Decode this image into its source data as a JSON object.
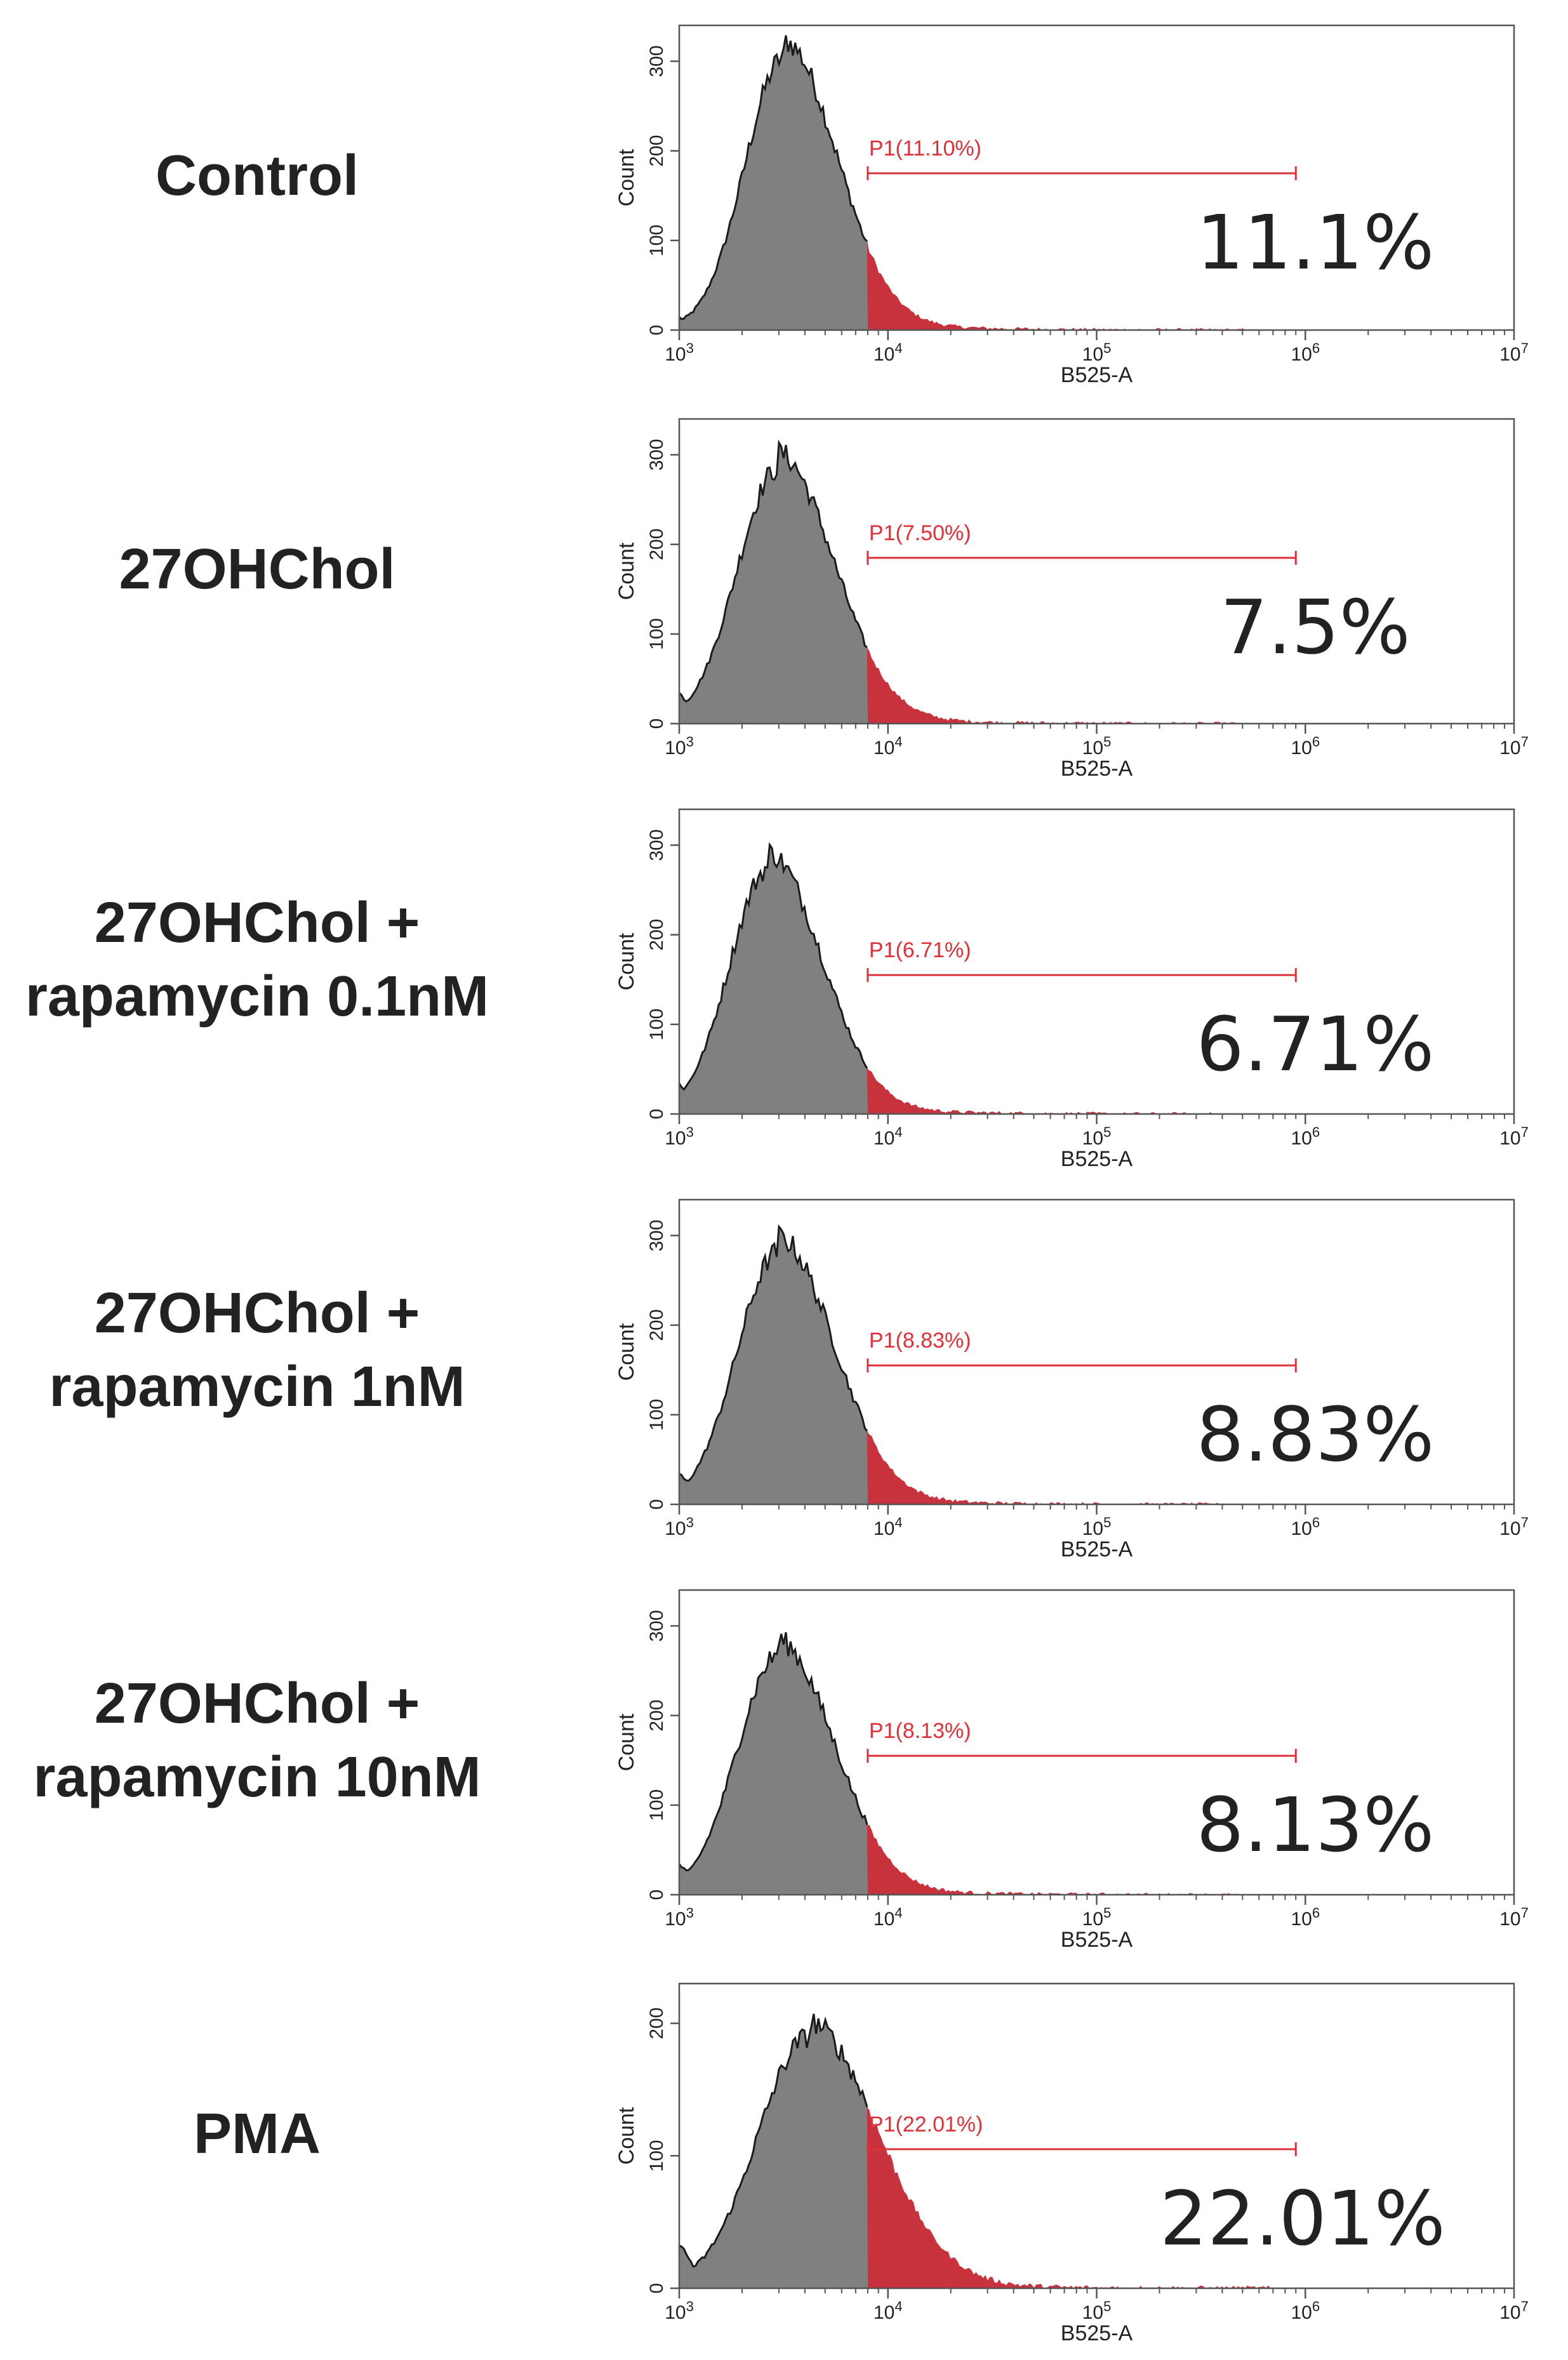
{
  "colors": {
    "histogram_fill": "#808080",
    "gated_fill": "#C8323C",
    "gate_color": "#E0303A",
    "outline": "#1a1a1a",
    "text": "#222222"
  },
  "chart_data": [
    {
      "type": "area",
      "condition": "Control",
      "condition_lines": [
        "Control"
      ],
      "xlabel": "B525-A",
      "ylabel": "Count",
      "x_scale": "log",
      "xlim": [
        1000,
        10000000
      ],
      "ylim": [
        0,
        340
      ],
      "x_ticks": [
        1000,
        10000,
        100000,
        1000000,
        10000000
      ],
      "y_ticks": [
        0,
        100,
        200,
        300
      ],
      "peak_x": 3200,
      "peak_y": 305,
      "width": 0.2,
      "base_y": 10,
      "gate": {
        "label": "P1(11.10%)",
        "x_start": 8000,
        "x_end": 900000,
        "y": 175
      },
      "percent_text": "11.1%"
    },
    {
      "type": "area",
      "condition": "27OHChol",
      "condition_lines": [
        "27OHChol"
      ],
      "xlabel": "B525-A",
      "ylabel": "Count",
      "x_scale": "log",
      "xlim": [
        1000,
        10000000
      ],
      "ylim": [
        0,
        340
      ],
      "x_ticks": [
        1000,
        10000,
        100000,
        1000000,
        10000000
      ],
      "y_ticks": [
        0,
        100,
        200,
        300
      ],
      "peak_x": 3000,
      "peak_y": 285,
      "width": 0.21,
      "base_y": 30,
      "gate": {
        "label": "P1(7.50%)",
        "x_start": 8000,
        "x_end": 900000,
        "y": 185
      },
      "percent_text": "7.5%"
    },
    {
      "type": "area",
      "condition": "27OHChol + rapamycin 0.1nM",
      "condition_lines": [
        "27OHChol +",
        "rapamycin 0.1nM"
      ],
      "xlabel": "B525-A",
      "ylabel": "Count",
      "x_scale": "log",
      "xlim": [
        1000,
        10000000
      ],
      "ylim": [
        0,
        340
      ],
      "x_ticks": [
        1000,
        10000,
        100000,
        1000000,
        10000000
      ],
      "y_ticks": [
        0,
        100,
        200,
        300
      ],
      "peak_x": 2700,
      "peak_y": 275,
      "width": 0.2,
      "base_y": 30,
      "gate": {
        "label": "P1(6.71%)",
        "x_start": 8000,
        "x_end": 900000,
        "y": 155
      },
      "percent_text": "6.71%"
    },
    {
      "type": "area",
      "condition": "27OHChol + rapamycin 1nM",
      "condition_lines": [
        "27OHChol +",
        "rapamycin 1nM"
      ],
      "xlabel": "B525-A",
      "ylabel": "Count",
      "x_scale": "log",
      "xlim": [
        1000,
        10000000
      ],
      "ylim": [
        0,
        340
      ],
      "x_ticks": [
        1000,
        10000,
        100000,
        1000000,
        10000000
      ],
      "y_ticks": [
        0,
        100,
        200,
        300
      ],
      "peak_x": 3000,
      "peak_y": 282,
      "width": 0.21,
      "base_y": 30,
      "gate": {
        "label": "P1(8.83%)",
        "x_start": 8000,
        "x_end": 900000,
        "y": 155
      },
      "percent_text": "8.83%"
    },
    {
      "type": "area",
      "condition": "27OHChol + rapamycin 10nM",
      "condition_lines": [
        "27OHChol +",
        "rapamycin 10nM"
      ],
      "xlabel": "B525-A",
      "ylabel": "Count",
      "x_scale": "log",
      "xlim": [
        1000,
        10000000
      ],
      "ylim": [
        0,
        340
      ],
      "x_ticks": [
        1000,
        10000,
        100000,
        1000000,
        10000000
      ],
      "y_ticks": [
        0,
        100,
        200,
        300
      ],
      "peak_x": 3000,
      "peak_y": 268,
      "width": 0.21,
      "base_y": 30,
      "gate": {
        "label": "P1(8.13%)",
        "x_start": 8000,
        "x_end": 900000,
        "y": 155
      },
      "percent_text": "8.13%"
    },
    {
      "type": "area",
      "condition": "PMA",
      "condition_lines": [
        "PMA"
      ],
      "xlabel": "B525-A",
      "ylabel": "Count",
      "x_scale": "log",
      "xlim": [
        1000,
        10000000
      ],
      "ylim": [
        0,
        230
      ],
      "x_ticks": [
        1000,
        10000,
        100000,
        1000000,
        10000000
      ],
      "y_ticks": [
        0,
        100,
        200
      ],
      "peak_x": 4200,
      "peak_y": 190,
      "width": 0.26,
      "base_y": 30,
      "gate": {
        "label": "P1(22.01%)",
        "x_start": 8000,
        "x_end": 900000,
        "y": 105
      },
      "percent_text": "22.01%"
    }
  ]
}
